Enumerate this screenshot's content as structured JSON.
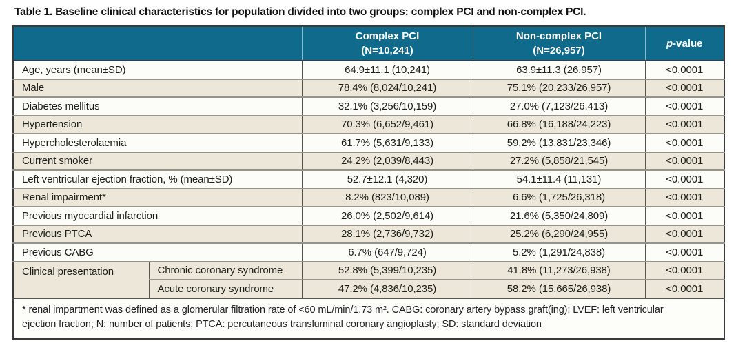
{
  "title": "Table 1. Baseline clinical characteristics for population divided into two groups: complex PCI and non-complex PCI.",
  "colors": {
    "header_bg": "#106a8c",
    "header_text": "#ffffff",
    "row_beige": "#ece7d8",
    "row_white": "#fcfcf9",
    "border_dark": "#3b3b3b",
    "row_divider": "#95938a"
  },
  "table": {
    "columns": {
      "complex": {
        "line1": "Complex PCI",
        "line2": "(N=10,241)"
      },
      "noncomplex": {
        "line1": "Non-complex PCI",
        "line2": "(N=26,957)"
      },
      "pvalue": {
        "italic": "p",
        "rest": "-value"
      }
    },
    "rows": [
      {
        "label": "Age, years (mean±SD)",
        "complex": "64.9±11.1 (10,241)",
        "noncomplex": "63.9±11.3 (26,957)",
        "p": "<0.0001"
      },
      {
        "label": "Male",
        "complex": "78.4% (8,024/10,241)",
        "noncomplex": "75.1% (20,233/26,957)",
        "p": "<0.0001"
      },
      {
        "label": "Diabetes mellitus",
        "complex": "32.1% (3,256/10,159)",
        "noncomplex": "27.0% (7,123/26,413)",
        "p": "<0.0001"
      },
      {
        "label": "Hypertension",
        "complex": "70.3% (6,652/9,461)",
        "noncomplex": "66.8% (16,188/24,223)",
        "p": "<0.0001"
      },
      {
        "label": "Hypercholesterolaemia",
        "complex": "61.7% (5,631/9,133)",
        "noncomplex": "59.2% (13,831/23,346)",
        "p": "<0.0001"
      },
      {
        "label": "Current smoker",
        "complex": "24.2% (2,039/8,443)",
        "noncomplex": "27.2% (5,858/21,545)",
        "p": "<0.0001"
      },
      {
        "label": "Left ventricular ejection fraction, % (mean±SD)",
        "complex": "52.7±12.1 (4,320)",
        "noncomplex": "54.1±11.4 (11,131)",
        "p": "<0.0001"
      },
      {
        "label": "Renal impairment*",
        "complex": "8.2% (823/10,089)",
        "noncomplex": "6.6% (1,725/26,318)",
        "p": "<0.0001"
      },
      {
        "label": "Previous myocardial infarction",
        "complex": "26.0% (2,502/9,614)",
        "noncomplex": "21.6% (5,350/24,809)",
        "p": "<0.0001"
      },
      {
        "label": "Previous PTCA",
        "complex": "28.1% (2,736/9,732)",
        "noncomplex": "25.2% (6,290/24,955)",
        "p": "<0.0001"
      },
      {
        "label": "Previous CABG",
        "complex": "6.7% (647/9,724)",
        "noncomplex": "5.2% (1,291/24,838)",
        "p": "<0.0001"
      }
    ],
    "group": {
      "label": "Clinical presentation",
      "items": [
        {
          "sub": "Chronic coronary syndrome",
          "complex": "52.8% (5,399/10,235)",
          "noncomplex": "41.8% (11,273/26,938)",
          "p": "<0.0001"
        },
        {
          "sub": "Acute coronary syndrome",
          "complex": "47.2% (4,836/10,235)",
          "noncomplex": "58.2% (15,665/26,938)",
          "p": "<0.0001"
        }
      ]
    }
  },
  "footnote": {
    "line1": "* renal impartment was defined as a glomerular filtration rate of <60 mL/min/1.73 m². CABG: coronary artery bypass graft(ing); LVEF: left ventricular",
    "line2": "ejection fraction; N: number of patients; PTCA: percutaneous transluminal coronary angioplasty; SD: standard deviation"
  }
}
